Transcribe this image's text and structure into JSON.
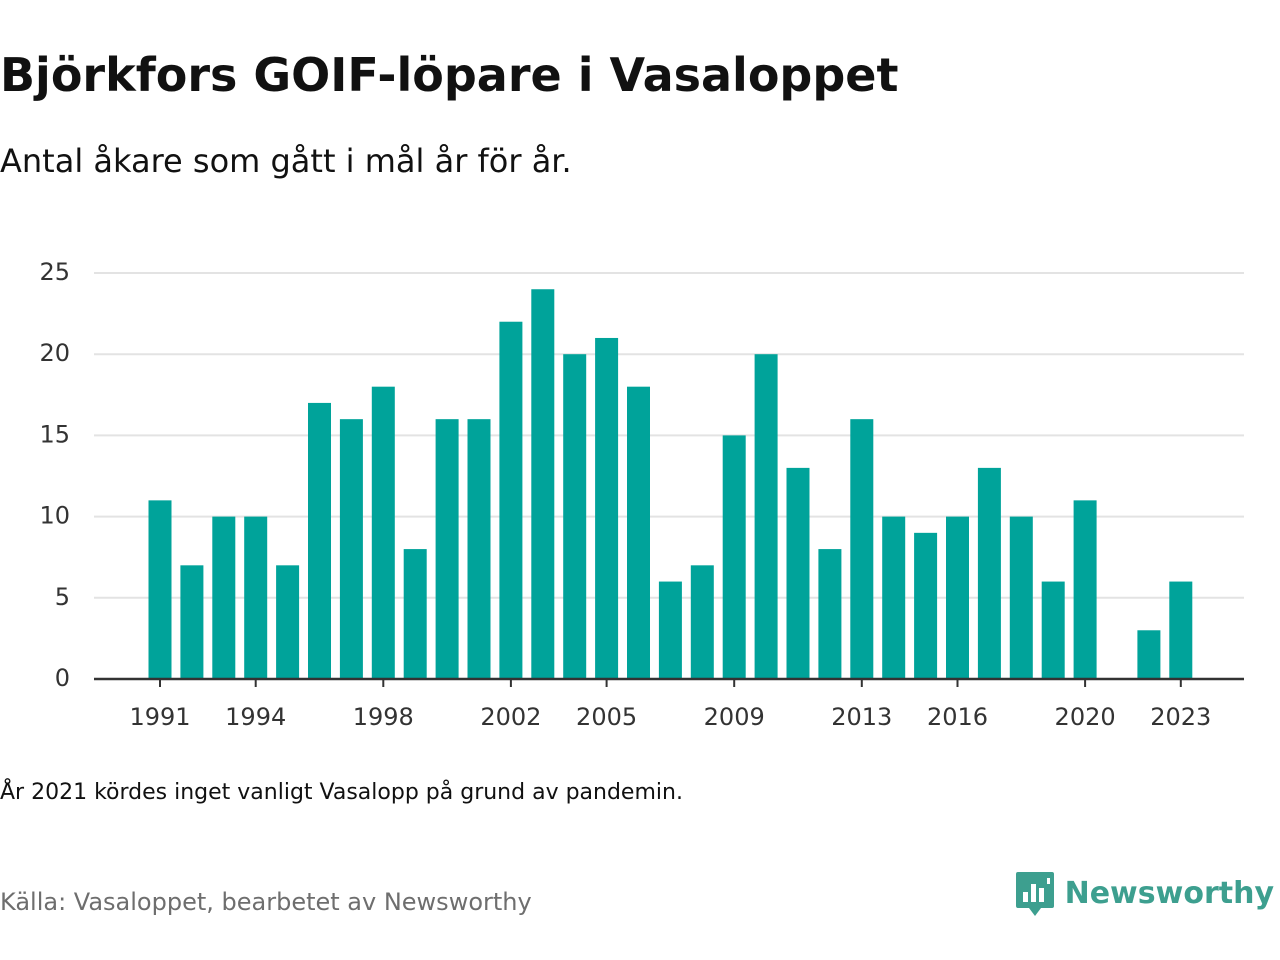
{
  "header": {
    "title": "Björkfors GOIF-löpare i Vasaloppet",
    "subtitle": "Antal åkare som gått i mål år för år."
  },
  "footer": {
    "note": "År 2021 kördes inget vanligt Vasalopp på grund av pandemin.",
    "source": "Källa: Vasaloppet, bearbetet av Newsworthy",
    "brand": "Newsworthy",
    "brand_icon": "newsworthy-logo-icon"
  },
  "colors": {
    "bar": "#00a39a",
    "brand": "#3d9f8f",
    "grid": "#e3e3e3",
    "axis": "#333333"
  },
  "chart_data": {
    "type": "bar",
    "categories": [
      "1991",
      "1992",
      "1993",
      "1994",
      "1995",
      "1996",
      "1997",
      "1998",
      "1999",
      "2000",
      "2001",
      "2002",
      "2003",
      "2004",
      "2005",
      "2006",
      "2007",
      "2008",
      "2009",
      "2010",
      "2011",
      "2012",
      "2013",
      "2014",
      "2015",
      "2016",
      "2017",
      "2018",
      "2019",
      "2020",
      "2021",
      "2022",
      "2023"
    ],
    "values": [
      11,
      7,
      10,
      10,
      7,
      17,
      16,
      18,
      8,
      16,
      16,
      22,
      24,
      20,
      21,
      18,
      6,
      7,
      15,
      20,
      13,
      8,
      16,
      10,
      9,
      10,
      13,
      10,
      6,
      11,
      null,
      3,
      6
    ],
    "x_tick_labels": [
      "1991",
      "1994",
      "1998",
      "2002",
      "2005",
      "2009",
      "2013",
      "2016",
      "2020",
      "2023"
    ],
    "y_ticks": [
      0,
      5,
      10,
      15,
      20,
      25
    ],
    "ylim": [
      0,
      25
    ],
    "grid": true,
    "legend": "none"
  }
}
